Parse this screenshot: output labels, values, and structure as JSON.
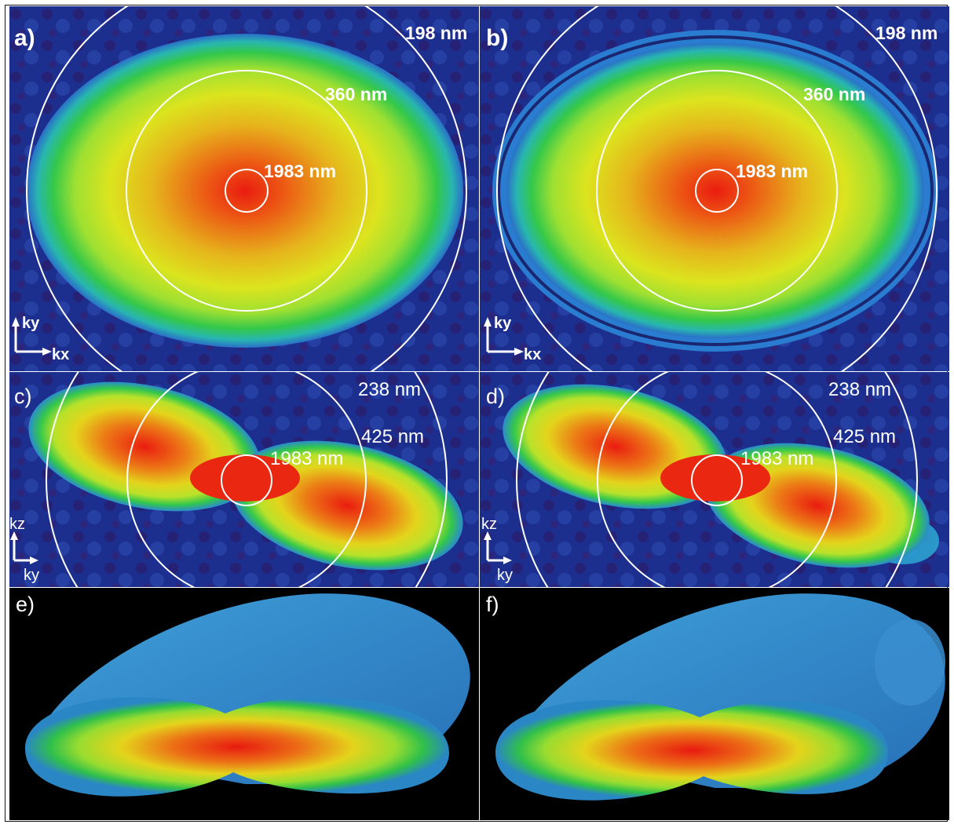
{
  "panels": [
    {
      "id": "a",
      "letter": "a)",
      "rings": [
        "198 nm",
        "360 nm",
        "1983 nm"
      ],
      "axes": {
        "vertical": "ky",
        "horizontal": "kx"
      }
    },
    {
      "id": "b",
      "letter": "b)",
      "rings": [
        "198 nm",
        "360 nm",
        "1983 nm"
      ],
      "axes": {
        "vertical": "ky",
        "horizontal": "kx"
      }
    },
    {
      "id": "c",
      "letter": "c)",
      "rings": [
        "238 nm",
        "425 nm",
        "1983 nm"
      ],
      "axes": {
        "vertical": "kz",
        "horizontal": "ky"
      }
    },
    {
      "id": "d",
      "letter": "d)",
      "rings": [
        "238 nm",
        "425 nm",
        "1983 nm"
      ],
      "axes": {
        "vertical": "kz",
        "horizontal": "ky"
      }
    },
    {
      "id": "e",
      "letter": "e)"
    },
    {
      "id": "f",
      "letter": "f)"
    }
  ],
  "colors": {
    "background_dark_blue": "#1a2e8c",
    "background_black": "#000000",
    "center_red": "#e8201a",
    "mid_yellow": "#e8e81a",
    "outer_green": "#2ec83c",
    "edge_cyan": "#30b4d8",
    "ring_white": "#ffffff"
  }
}
